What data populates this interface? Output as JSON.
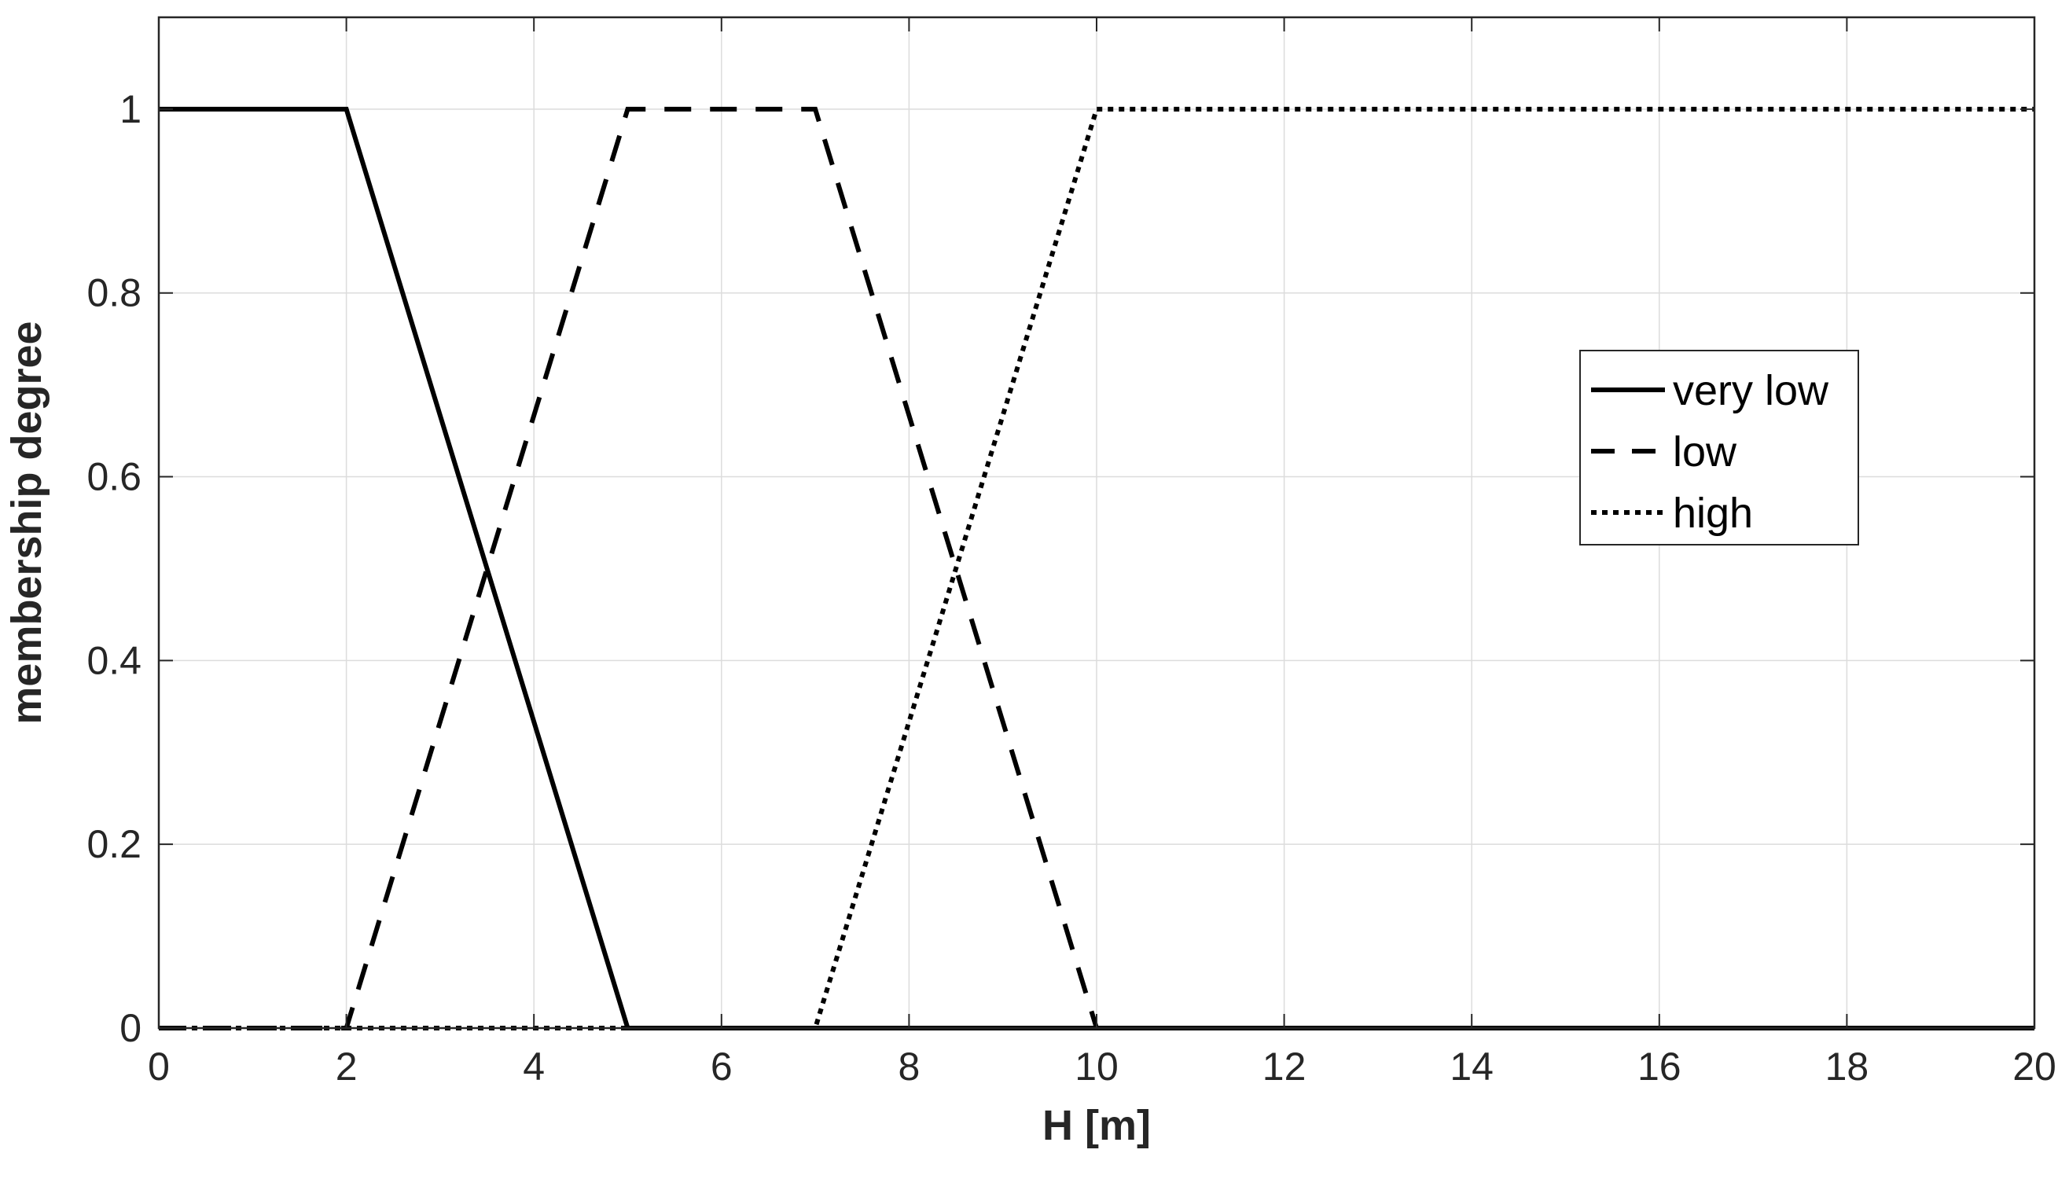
{
  "chart_data": {
    "type": "line",
    "xlabel": "H [m]",
    "ylabel": "membership degree",
    "xlim": [
      0,
      20
    ],
    "ylim": [
      0,
      1.1
    ],
    "x_ticks": [
      0,
      2,
      4,
      6,
      8,
      10,
      12,
      14,
      16,
      18,
      20
    ],
    "y_ticks": [
      0,
      0.2,
      0.4,
      0.6,
      0.8,
      1
    ],
    "x_tick_labels": [
      "0",
      "2",
      "4",
      "6",
      "8",
      "10",
      "12",
      "14",
      "16",
      "18",
      "20"
    ],
    "y_tick_labels": [
      "0",
      "0.2",
      "0.4",
      "0.6",
      "0.8",
      "1"
    ],
    "grid": true,
    "legend_position": "right",
    "series": [
      {
        "name": "very low",
        "style": "solid",
        "color": "#000000",
        "x": [
          0,
          2,
          5,
          20
        ],
        "y": [
          1,
          1,
          0,
          0
        ]
      },
      {
        "name": "low",
        "style": "dashed",
        "color": "#000000",
        "x": [
          0,
          2,
          5,
          7,
          10,
          20
        ],
        "y": [
          0,
          0,
          1,
          1,
          0,
          0
        ]
      },
      {
        "name": "high",
        "style": "dotted",
        "color": "#000000",
        "x": [
          0,
          7,
          10,
          20
        ],
        "y": [
          0,
          0,
          1,
          1
        ]
      }
    ]
  }
}
